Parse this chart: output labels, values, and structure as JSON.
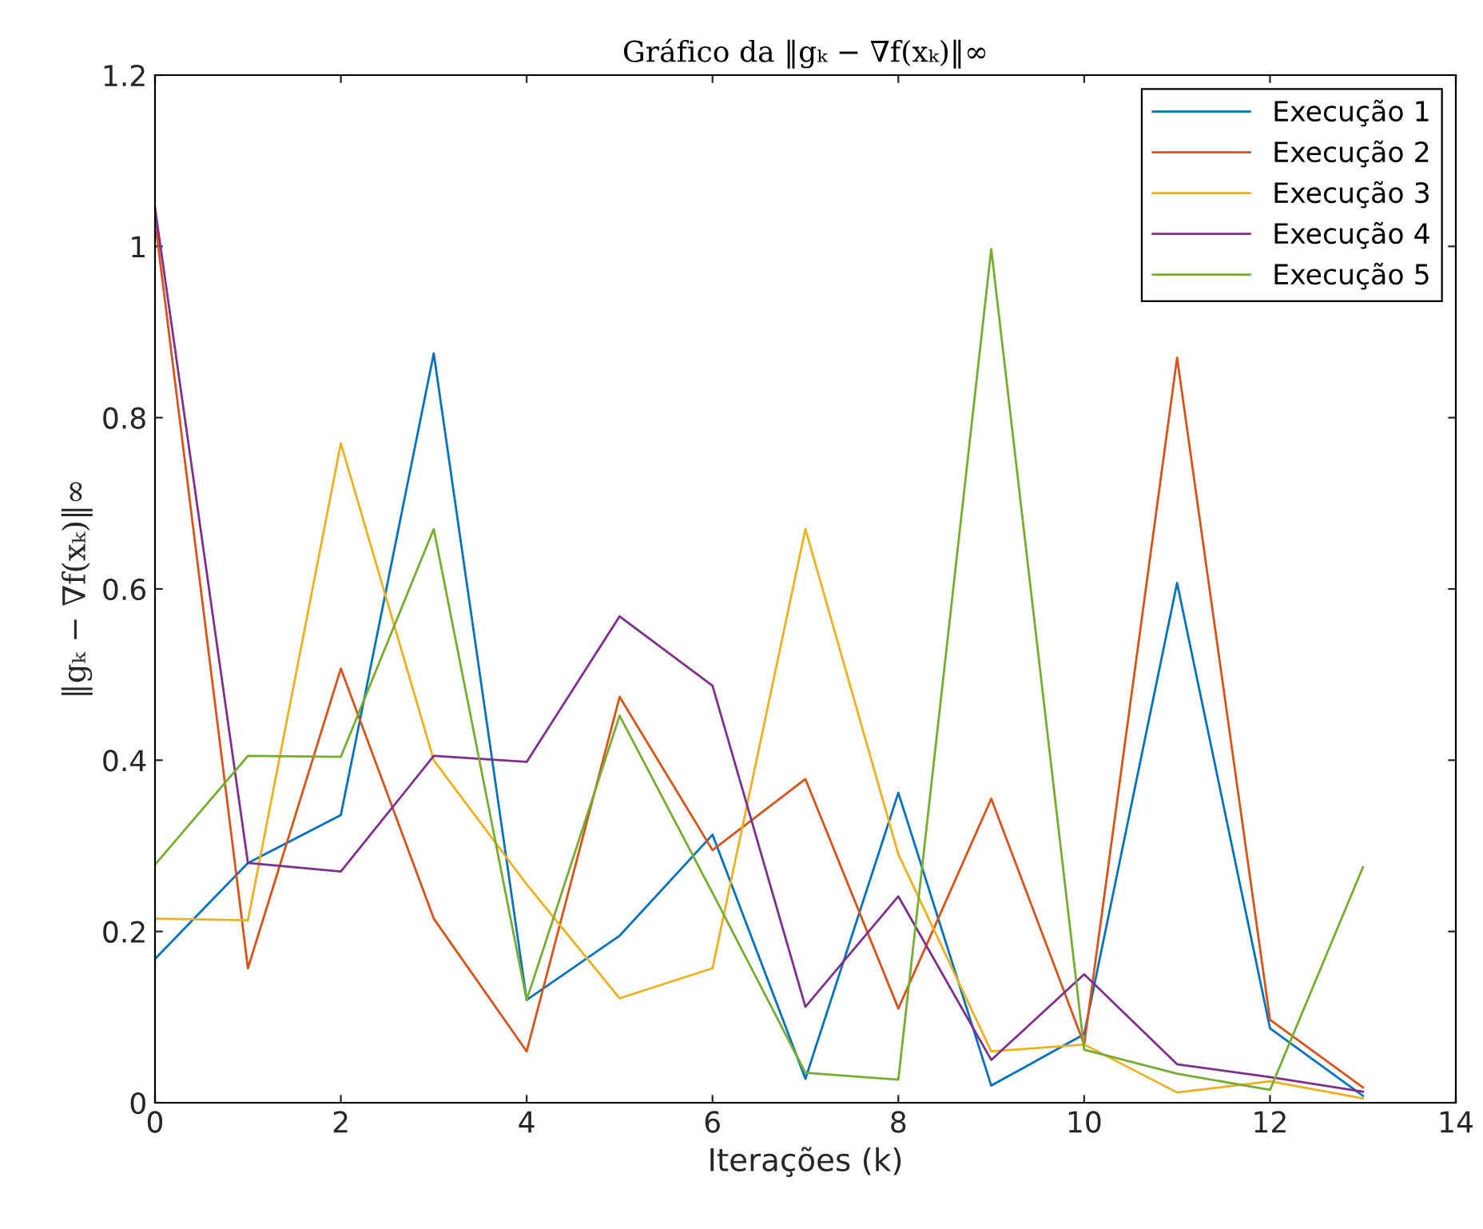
{
  "chart_data": {
    "type": "line",
    "title": "Gráfico da ‖gₖ − ∇f(xₖ)‖∞",
    "xlabel": "Iterações (k)",
    "ylabel": "‖gₖ − ∇f(xₖ)‖∞",
    "x": [
      0,
      1,
      2,
      3,
      4,
      5,
      6,
      7,
      8,
      9,
      10,
      11,
      12,
      13
    ],
    "series": [
      {
        "name": "Execução 1",
        "color": "#0072bd",
        "values": [
          0.168,
          0.28,
          0.336,
          0.875,
          0.12,
          0.195,
          0.313,
          0.028,
          0.362,
          0.02,
          0.08,
          0.607,
          0.087,
          0.008
        ]
      },
      {
        "name": "Execução 2",
        "color": "#d95319",
        "values": [
          1.03,
          0.157,
          0.507,
          0.215,
          0.06,
          0.474,
          0.295,
          0.378,
          0.11,
          0.355,
          0.068,
          0.87,
          0.097,
          0.018
        ]
      },
      {
        "name": "Execução 3",
        "color": "#edb120",
        "values": [
          0.215,
          0.213,
          0.77,
          0.4,
          0.255,
          0.122,
          0.157,
          0.67,
          0.29,
          0.06,
          0.068,
          0.012,
          0.025,
          0.005
        ]
      },
      {
        "name": "Execução 4",
        "color": "#7e2f8e",
        "values": [
          1.045,
          0.28,
          0.27,
          0.405,
          0.398,
          0.568,
          0.487,
          0.112,
          0.241,
          0.05,
          0.15,
          0.045,
          0.03,
          0.013
        ]
      },
      {
        "name": "Execução 5",
        "color": "#77ac30",
        "values": [
          0.278,
          0.405,
          0.404,
          0.67,
          0.12,
          0.452,
          0.245,
          0.035,
          0.027,
          0.997,
          0.062,
          0.034,
          0.015,
          0.275
        ]
      }
    ],
    "xlim": [
      0,
      14
    ],
    "xticks": [
      0,
      2,
      4,
      6,
      8,
      10,
      12,
      14
    ],
    "ylim": [
      0,
      1.2
    ],
    "yticks": [
      0,
      0.2,
      0.4,
      0.6,
      0.8,
      1,
      1.2
    ],
    "grid": false,
    "legend": "top right",
    "marker": "none",
    "line_style": "solid"
  }
}
